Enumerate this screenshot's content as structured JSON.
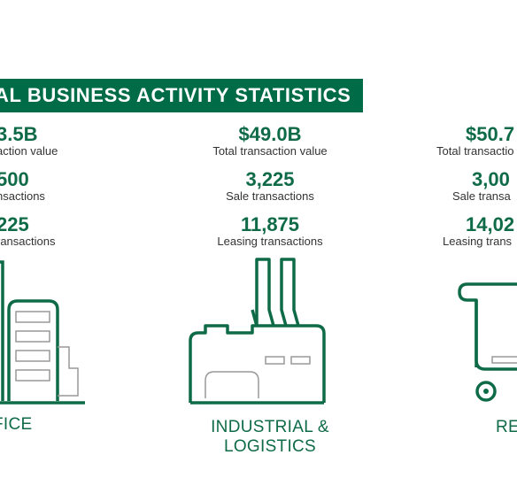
{
  "banner": {
    "title": "AL BUSINESS ACTIVITY STATISTICS"
  },
  "colors": {
    "brand_green": "#006b47",
    "icon_green": "#0f6b47",
    "icon_gray": "#999999"
  },
  "office": {
    "total_value": "3.5B",
    "total_value_label": "action value",
    "sale": "500",
    "sale_label": "nsactions",
    "leasing": "225",
    "leasing_label": "ransactions",
    "category": "FICE",
    "icon": "office-building-icon"
  },
  "industrial": {
    "total_value": "$49.0B",
    "total_value_label": "Total transaction value",
    "sale": "3,225",
    "sale_label": "Sale transactions",
    "leasing": "11,875",
    "leasing_label": "Leasing transactions",
    "category_line1": "INDUSTRIAL &",
    "category_line2": "LOGISTICS",
    "icon": "factory-icon"
  },
  "retail": {
    "total_value": "$50.7",
    "total_value_label": "Total transactio",
    "sale": "3,00",
    "sale_label": "Sale transa",
    "leasing": "14,02",
    "leasing_label": "Leasing trans",
    "category": "RE",
    "icon": "shopping-cart-icon"
  }
}
